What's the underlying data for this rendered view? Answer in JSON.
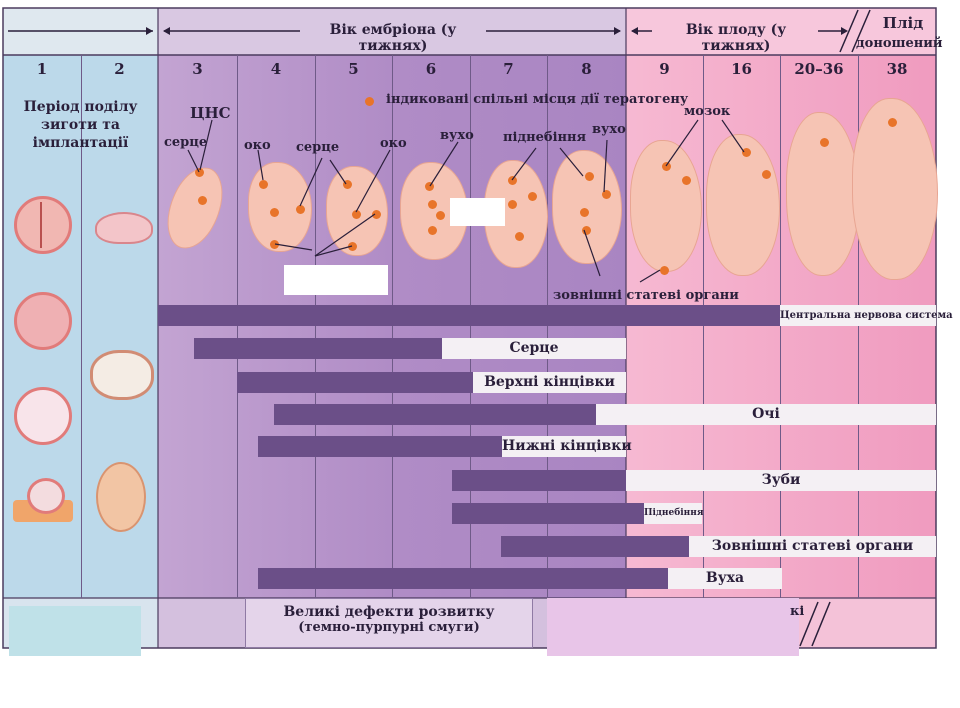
{
  "header": {
    "embryo_age": "Вік ембріона (у тижнях)",
    "fetus_age": "Вік плоду (у тижнях)",
    "term_fetus_line1": "Плід",
    "term_fetus_line2": "доношений"
  },
  "columns": [
    "1",
    "2",
    "3",
    "4",
    "5",
    "6",
    "7",
    "8",
    "9",
    "16",
    "20–36",
    "38"
  ],
  "period_label": [
    "Період поділу",
    "зиготи та",
    "імплантації"
  ],
  "legend": {
    "teratogen_sites": "індиковані спільні місця дії тератогену"
  },
  "organ_labels": {
    "cns": "ЦНС",
    "heart_w3": "серце",
    "eye_w4": "око",
    "heart_w5": "серце",
    "eye_w5": "око",
    "ear_w6": "вухо",
    "palate_w7": "піднебіння",
    "ear_w8": "вухо",
    "brain": "мозок",
    "external_genitalia": "зовнішні статеві органи"
  },
  "bars": {
    "cns": "Центральна нервова система",
    "heart": "Серце",
    "upper_limbs": "Верхні кінцівки",
    "eyes": "Очі",
    "lower_limbs": "Нижні кінцівки",
    "teeth": "Зуби",
    "palate": "Піднебіння",
    "external_genitalia": "Зовнішні статеві органи",
    "ears": "Вуха"
  },
  "footer": {
    "major_defects_line1": "Великі дефекти розвитку",
    "major_defects_line2": "(темно-пурпурні смуги)",
    "partial_text": "кі"
  },
  "colors": {
    "period_blue": "#bcd9ea",
    "embryo_purple": "#b794c8",
    "fetus_pink": "#f2a9c6",
    "dark_bar": "#6b4f88",
    "light_bar": "#f4f0f4",
    "teratogen_dot": "#e8742a"
  }
}
